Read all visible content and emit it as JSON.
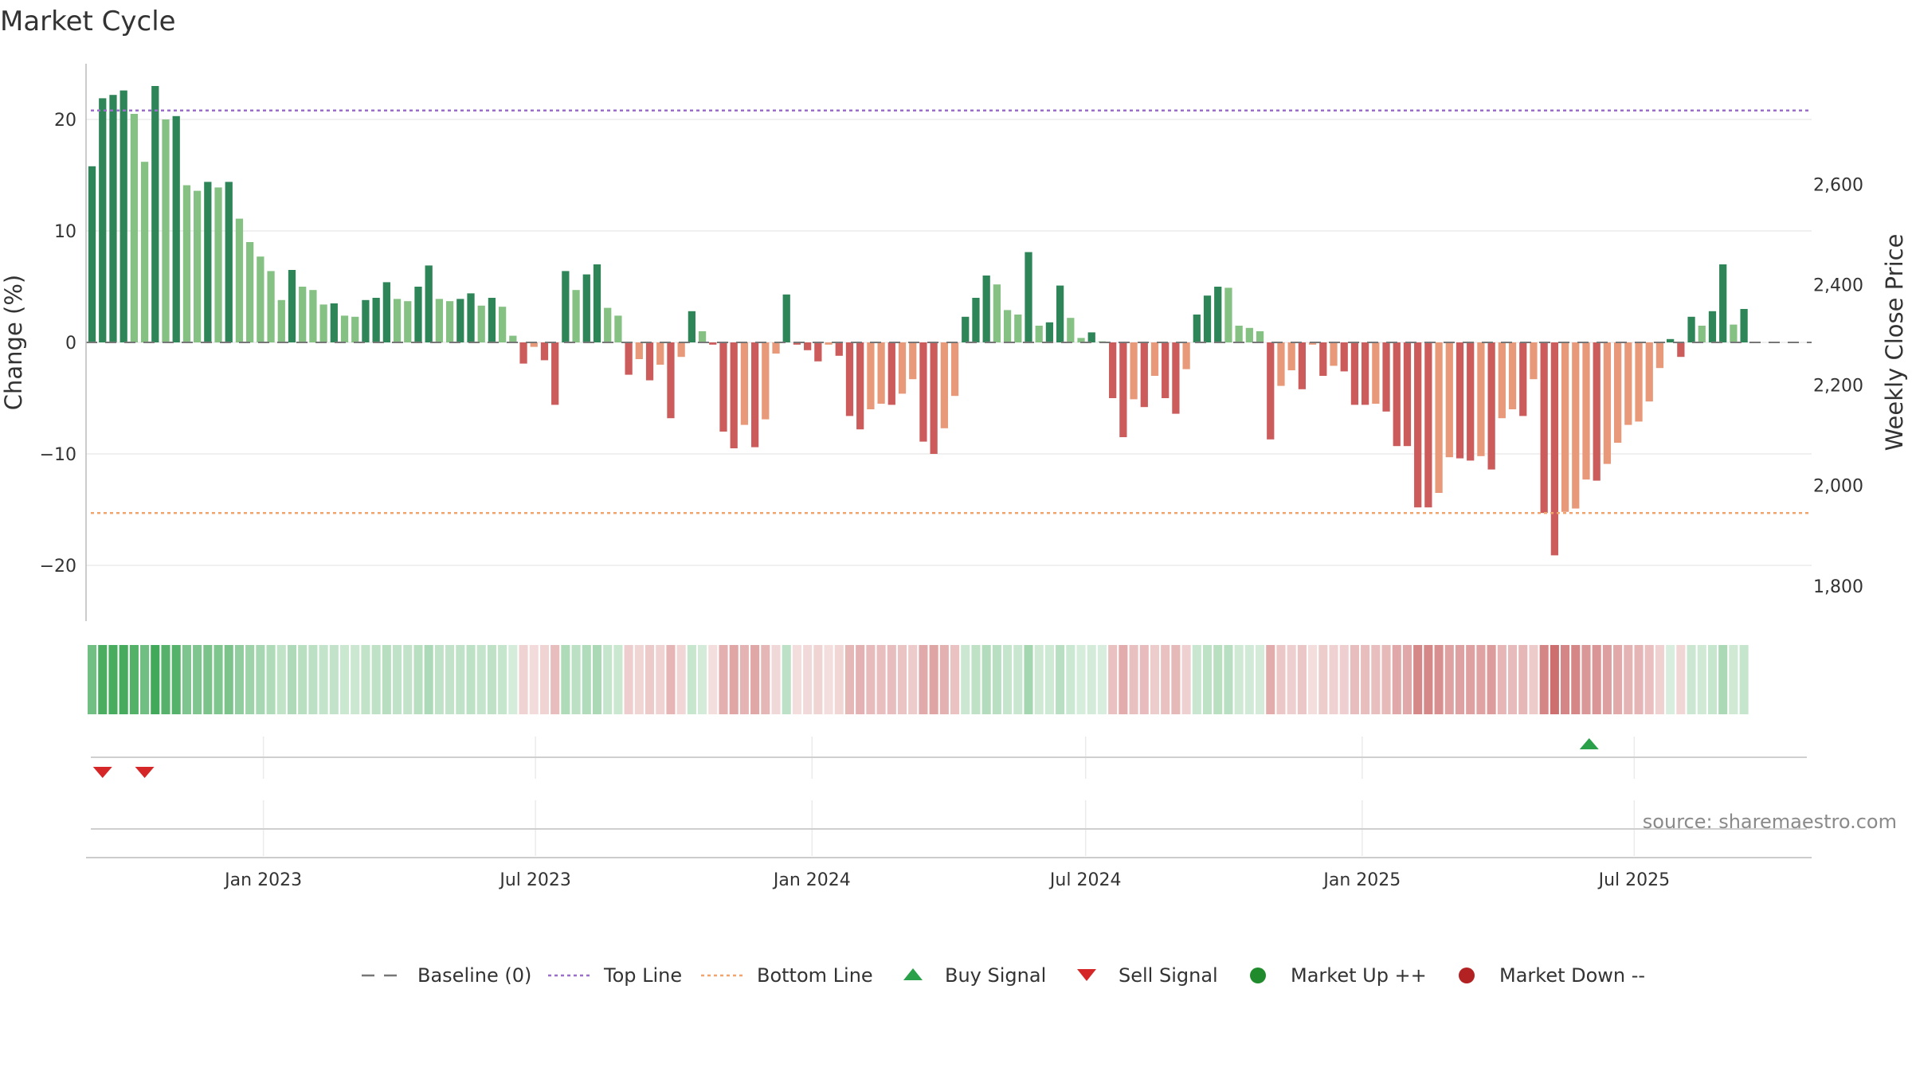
{
  "chart_data": {
    "type": "bar",
    "title": "Market Cycle",
    "ylabel": "Change (%)",
    "y2label": "Weekly Close Price",
    "ylim": [
      -25,
      25
    ],
    "yticks": [
      20,
      10,
      0,
      -10,
      -20
    ],
    "ytick_labels": [
      "20",
      "10",
      "0",
      "−10",
      "−20"
    ],
    "y2lim": [
      1730,
      2840
    ],
    "y2ticks": [
      2600,
      2400,
      2200,
      2000,
      1800
    ],
    "y2tick_labels": [
      "2,600",
      "2,400",
      "2,200",
      "2,000",
      "1,800"
    ],
    "top_line": 20.8,
    "bottom_line": -15.3,
    "x_start": "2022-09-05",
    "x_end": "2025-10-27",
    "x_ticks": [
      {
        "date": "2023-01-01",
        "label": "Jan 2023"
      },
      {
        "date": "2023-07-01",
        "label": "Jul 2023"
      },
      {
        "date": "2024-01-01",
        "label": "Jan 2024"
      },
      {
        "date": "2024-07-01",
        "label": "Jul 2024"
      },
      {
        "date": "2025-01-01",
        "label": "Jan 2025"
      },
      {
        "date": "2025-07-01",
        "label": "Jul 2025"
      }
    ],
    "first_week": "2022-09-09",
    "values": [
      15.8,
      21.9,
      22.2,
      22.6,
      20.5,
      16.2,
      23.0,
      20.0,
      20.3,
      14.1,
      13.6,
      14.4,
      13.9,
      14.4,
      11.1,
      9.0,
      7.7,
      6.4,
      3.8,
      6.5,
      5.0,
      4.7,
      3.4,
      3.5,
      2.4,
      2.3,
      3.8,
      4.0,
      5.4,
      3.9,
      3.7,
      5.0,
      6.9,
      3.9,
      3.7,
      3.9,
      4.4,
      3.3,
      4.0,
      3.2,
      0.6,
      -1.9,
      -0.4,
      -1.6,
      -5.6,
      6.4,
      4.7,
      6.1,
      7.0,
      3.1,
      2.4,
      -2.9,
      -1.5,
      -3.4,
      -2.0,
      -6.8,
      -1.3,
      2.8,
      1.0,
      -0.2,
      -8.0,
      -9.5,
      -7.4,
      -9.4,
      -6.9,
      -1.0,
      4.3,
      -0.2,
      -0.7,
      -1.7,
      -0.2,
      -1.2,
      -6.6,
      -7.8,
      -6.0,
      -5.5,
      -5.6,
      -4.6,
      -3.3,
      -8.9,
      -10.0,
      -7.7,
      -4.8,
      2.3,
      4.0,
      6.0,
      5.2,
      2.9,
      2.5,
      8.1,
      1.5,
      1.8,
      5.1,
      2.2,
      0.4,
      0.9,
      0.1,
      -5.0,
      -8.5,
      -5.1,
      -5.8,
      -3.0,
      -5.0,
      -6.4,
      -2.4,
      2.5,
      4.2,
      5.0,
      4.9,
      1.5,
      1.3,
      1.0,
      -8.7,
      -3.9,
      -2.5,
      -4.2,
      -0.2,
      -3.0,
      -2.1,
      -2.6,
      -5.6,
      -5.6,
      -5.5,
      -6.2,
      -9.3,
      -9.3,
      -14.8,
      -14.8,
      -13.5,
      -10.3,
      -10.4,
      -10.6,
      -10.2,
      -11.4,
      -6.8,
      -6.0,
      -6.6,
      -3.3,
      -15.3,
      -19.1,
      -15.2,
      -14.9,
      -12.3,
      -12.4,
      -10.9,
      -9.0,
      -7.4,
      -7.1,
      -5.3,
      -2.3,
      0.3,
      -1.3,
      2.3,
      1.5,
      2.8,
      7.0,
      1.6,
      3.0
    ],
    "dark_green_color": "#2e8557",
    "light_green_color": "#86c184",
    "dark_red_color": "#cc5c5c",
    "light_red_color": "#e8997a",
    "baseline_color": "#777777",
    "top_line_color": "#9b6fc7",
    "bottom_line_color": "#f0a470",
    "buy_signals": [
      "2025-06-01"
    ],
    "sell_signals": [
      "2022-09-16",
      "2022-10-14"
    ],
    "buy_color": "#2aa04a",
    "sell_color": "#d62728",
    "market_up_color": "#1f8b2c",
    "market_down_color": "#b22222",
    "legend": [
      {
        "icon": "baseline-dash-icon",
        "label": "Baseline (0)"
      },
      {
        "icon": "top-line-dot-icon",
        "label": "Top Line"
      },
      {
        "icon": "bottom-line-dot-icon",
        "label": "Bottom Line"
      },
      {
        "icon": "triangle-up-icon",
        "label": "Buy Signal"
      },
      {
        "icon": "triangle-down-icon",
        "label": "Sell Signal"
      },
      {
        "icon": "circle-green-icon",
        "label": "Market Up ++"
      },
      {
        "icon": "circle-red-icon",
        "label": "Market Down --"
      }
    ],
    "source_text": "source: sharemaestro.com"
  }
}
